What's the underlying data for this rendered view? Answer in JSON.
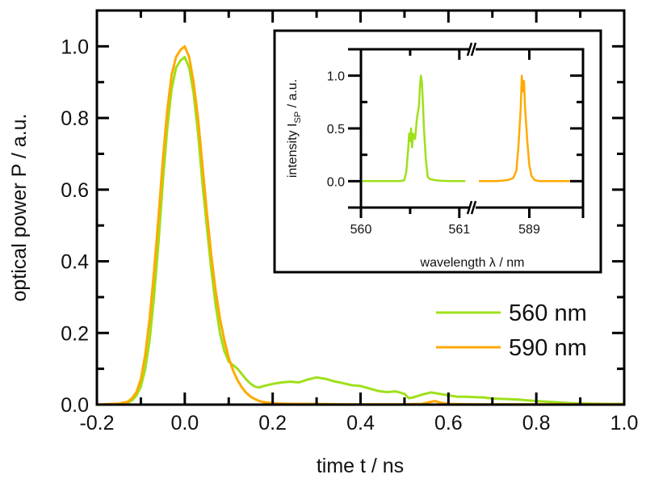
{
  "chart_data": [
    {
      "id": "main",
      "type": "line",
      "title": "",
      "xlabel": "time t / ns",
      "ylabel": "optical power P / a.u.",
      "xlim": [
        -0.2,
        1.0
      ],
      "ylim": [
        0.0,
        1.1
      ],
      "xticks": [
        -0.2,
        0.0,
        0.2,
        0.4,
        0.6,
        0.8,
        1.0
      ],
      "xtick_labels": [
        "-0.2",
        "0.0",
        "0.2",
        "0.4",
        "0.6",
        "0.8",
        "1.0"
      ],
      "yticks": [
        0.0,
        0.2,
        0.4,
        0.6,
        0.8,
        1.0
      ],
      "ytick_labels": [
        "0.0",
        "0.2",
        "0.4",
        "0.6",
        "0.8",
        "1.0"
      ],
      "grid": false,
      "legend": "bottom-right",
      "series": [
        {
          "name": "560 nm",
          "color": "#9ee01a",
          "x": [
            -0.2,
            -0.15,
            -0.13,
            -0.12,
            -0.11,
            -0.1,
            -0.09,
            -0.08,
            -0.07,
            -0.06,
            -0.05,
            -0.04,
            -0.03,
            -0.02,
            -0.01,
            0.0,
            0.01,
            0.02,
            0.03,
            0.04,
            0.05,
            0.06,
            0.07,
            0.08,
            0.09,
            0.1,
            0.11,
            0.12,
            0.13,
            0.14,
            0.15,
            0.16,
            0.17,
            0.18,
            0.2,
            0.22,
            0.24,
            0.26,
            0.28,
            0.3,
            0.32,
            0.34,
            0.36,
            0.38,
            0.4,
            0.42,
            0.44,
            0.46,
            0.48,
            0.5,
            0.51,
            0.52,
            0.54,
            0.56,
            0.58,
            0.6,
            0.62,
            0.64,
            0.66,
            0.68,
            0.7,
            0.72,
            0.74,
            0.76,
            0.78,
            0.8,
            0.84,
            0.88,
            0.92,
            0.96,
            1.0
          ],
          "y": [
            0.0,
            0.002,
            0.005,
            0.012,
            0.025,
            0.05,
            0.1,
            0.18,
            0.3,
            0.45,
            0.62,
            0.77,
            0.88,
            0.94,
            0.96,
            0.97,
            0.94,
            0.87,
            0.76,
            0.62,
            0.5,
            0.38,
            0.28,
            0.2,
            0.15,
            0.12,
            0.11,
            0.1,
            0.085,
            0.07,
            0.058,
            0.05,
            0.048,
            0.052,
            0.058,
            0.062,
            0.064,
            0.062,
            0.07,
            0.076,
            0.072,
            0.065,
            0.06,
            0.054,
            0.052,
            0.045,
            0.038,
            0.035,
            0.037,
            0.03,
            0.018,
            0.02,
            0.028,
            0.034,
            0.03,
            0.026,
            0.022,
            0.022,
            0.021,
            0.02,
            0.017,
            0.016,
            0.015,
            0.014,
            0.012,
            0.01,
            0.007,
            0.004,
            0.003,
            0.002,
            0.002
          ]
        },
        {
          "name": "590 nm",
          "color": "#ffaa00",
          "x": [
            -0.2,
            -0.15,
            -0.13,
            -0.12,
            -0.11,
            -0.1,
            -0.09,
            -0.08,
            -0.07,
            -0.06,
            -0.05,
            -0.04,
            -0.03,
            -0.02,
            -0.01,
            0.0,
            0.01,
            0.02,
            0.03,
            0.04,
            0.05,
            0.06,
            0.07,
            0.08,
            0.09,
            0.1,
            0.11,
            0.12,
            0.13,
            0.14,
            0.15,
            0.16,
            0.17,
            0.18,
            0.2,
            0.22,
            0.25,
            0.3,
            0.35,
            0.4,
            0.45,
            0.5,
            0.54,
            0.56,
            0.57,
            0.58,
            0.6,
            0.65,
            0.7,
            0.8,
            0.9,
            1.0
          ],
          "y": [
            0.0,
            0.003,
            0.008,
            0.018,
            0.035,
            0.07,
            0.14,
            0.24,
            0.37,
            0.52,
            0.68,
            0.82,
            0.92,
            0.97,
            0.99,
            1.0,
            0.97,
            0.9,
            0.8,
            0.67,
            0.54,
            0.42,
            0.32,
            0.24,
            0.18,
            0.13,
            0.095,
            0.068,
            0.048,
            0.033,
            0.022,
            0.015,
            0.01,
            0.007,
            0.004,
            0.003,
            0.002,
            0.002,
            0.001,
            0.001,
            0.001,
            0.001,
            0.002,
            0.008,
            0.01,
            0.006,
            0.002,
            0.001,
            0.001,
            0.001,
            0.001,
            0.001
          ]
        }
      ]
    },
    {
      "id": "inset",
      "type": "line",
      "title": "",
      "xlabel": "wavelength λ / nm",
      "ylabel_main": "intensity I",
      "ylabel_sub": "SP",
      "ylabel_tail": " / a.u.",
      "axis_break": true,
      "segments": [
        {
          "xlim": [
            560.0,
            561.1
          ]
        },
        {
          "xlim": [
            588.5,
            589.5
          ]
        }
      ],
      "ylim": [
        -0.25,
        1.25
      ],
      "xticks": [
        560.0,
        560.5,
        561.0,
        589.0
      ],
      "xtick_labels": [
        "560",
        "",
        "561",
        "589"
      ],
      "yticks": [
        0.0,
        0.25,
        0.5,
        0.75,
        1.0
      ],
      "ytick_labels": [
        "0.0",
        "",
        "0.5",
        "",
        "1.0"
      ],
      "series": [
        {
          "name": "560 nm spectrum",
          "color": "#9ee01a",
          "segment": 0,
          "x": [
            560.0,
            560.2,
            560.4,
            560.44,
            560.46,
            560.48,
            560.49,
            560.5,
            560.51,
            560.52,
            560.53,
            560.55,
            560.57,
            560.59,
            560.6,
            560.61,
            560.62,
            560.63,
            560.64,
            560.66,
            560.68,
            560.7,
            560.75,
            560.8,
            560.9,
            561.0,
            561.06
          ],
          "y": [
            0.0,
            0.0,
            0.0,
            0.01,
            0.08,
            0.3,
            0.45,
            0.38,
            0.5,
            0.32,
            0.45,
            0.4,
            0.6,
            0.72,
            0.9,
            1.0,
            0.93,
            0.75,
            0.5,
            0.2,
            0.04,
            0.02,
            0.01,
            0.005,
            0.0,
            0.0,
            0.0
          ]
        },
        {
          "name": "590 nm spectrum",
          "color": "#ffaa00",
          "segment": 1,
          "x": [
            588.53,
            588.7,
            588.8,
            588.85,
            588.88,
            588.9,
            588.92,
            588.93,
            588.94,
            588.95,
            588.96,
            588.98,
            589.0,
            589.02,
            589.05,
            589.1,
            589.2,
            589.3,
            589.45
          ],
          "y": [
            0.0,
            0.0,
            0.01,
            0.03,
            0.1,
            0.35,
            0.7,
            1.0,
            0.85,
            0.95,
            0.7,
            0.4,
            0.15,
            0.05,
            0.01,
            0.0,
            0.0,
            0.0,
            0.0
          ]
        }
      ]
    }
  ]
}
